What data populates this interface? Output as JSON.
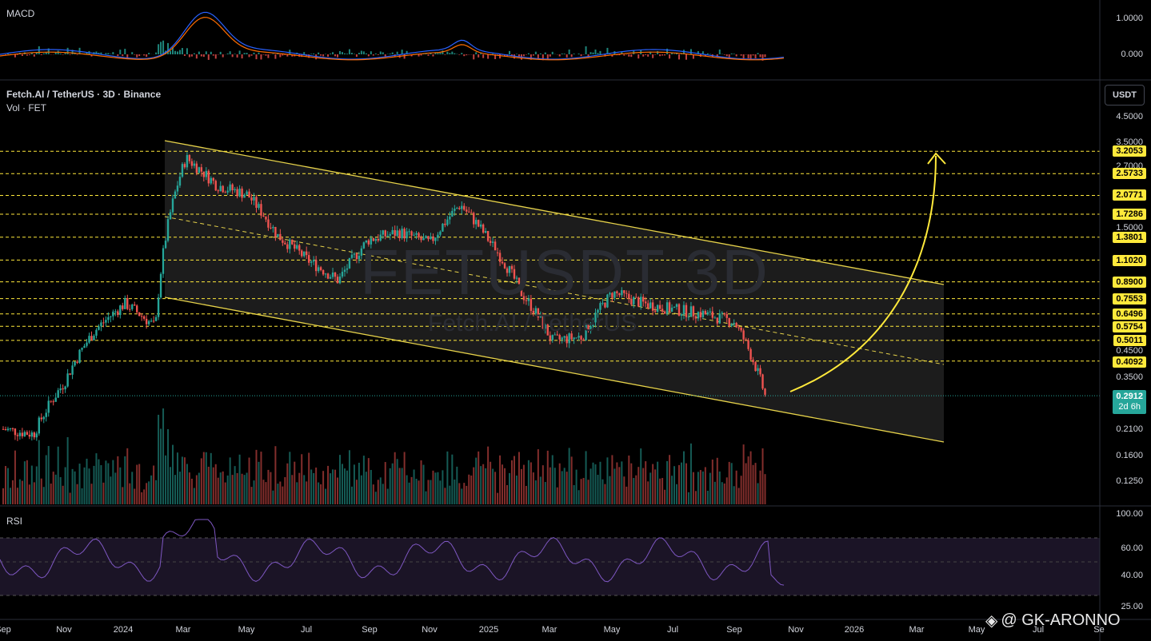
{
  "header": {
    "symbol_title": "Fetch.AI / TetherUS · 3D · Binance",
    "volume_title": "Vol · FET",
    "currency_button": "USDT",
    "watermark_symbol": "FETUSDT 3D",
    "watermark_name": "Fetch.AI / TetherUS",
    "brand": "@ GK-ARONNO"
  },
  "panes": {
    "macd": {
      "title": "MACD",
      "ticks": [
        "1.0000",
        "0.000"
      ]
    },
    "rsi": {
      "title": "RSI",
      "ticks": [
        "100.00",
        "60.00",
        "40.00",
        "25.00"
      ]
    }
  },
  "price_axis": {
    "ticks": [
      "4.5000",
      "3.5000",
      "2.7000",
      "1.5000",
      "0.4500",
      "0.3500",
      "0.2100",
      "0.1600",
      "0.1250"
    ]
  },
  "current_price": {
    "value": "0.2912",
    "countdown": "2d 6h"
  },
  "x_axis": [
    "Sep",
    "Nov",
    "2024",
    "Mar",
    "May",
    "Jul",
    "Sep",
    "Nov",
    "2025",
    "Mar",
    "May",
    "Jul",
    "Sep",
    "Nov",
    "2026",
    "Mar",
    "May",
    "Jul",
    "Se"
  ],
  "colors": {
    "up": "#26a69a",
    "down": "#ef5350",
    "level": "#ffe93b",
    "channel": "#e6d24a",
    "macd": "#2962ff",
    "signal": "#ff6d00",
    "rsi": "#7e57c2"
  },
  "chart_data": {
    "type": "candlestick",
    "title": "Fetch.AI / TetherUS · 3D · Binance",
    "price_series_approx": [
      {
        "t": "Sep 2023",
        "p": 0.21
      },
      {
        "t": "Oct 2023",
        "p": 0.2
      },
      {
        "t": "Nov 2023",
        "p": 0.33
      },
      {
        "t": "Dec 2023",
        "p": 0.55
      },
      {
        "t": "Jan 2024",
        "p": 0.72
      },
      {
        "t": "Feb 2024",
        "p": 0.57
      },
      {
        "t": "Mar 2024",
        "p": 3.0
      },
      {
        "t": "Apr 2024",
        "p": 2.3
      },
      {
        "t": "May 2024",
        "p": 2.1
      },
      {
        "t": "Jun 2024",
        "p": 1.4
      },
      {
        "t": "Jul 2024",
        "p": 1.1
      },
      {
        "t": "Aug 2024",
        "p": 0.9
      },
      {
        "t": "Sep 2024",
        "p": 1.35
      },
      {
        "t": "Oct 2024",
        "p": 1.45
      },
      {
        "t": "Nov 2024",
        "p": 1.3
      },
      {
        "t": "Dec 2024",
        "p": 1.9
      },
      {
        "t": "Jan 2025",
        "p": 1.3
      },
      {
        "t": "Feb 2025",
        "p": 0.8
      },
      {
        "t": "Mar 2025",
        "p": 0.5
      },
      {
        "t": "Apr 2025",
        "p": 0.52
      },
      {
        "t": "May 2025",
        "p": 0.8
      },
      {
        "t": "Jun 2025",
        "p": 0.72
      },
      {
        "t": "Jul 2025",
        "p": 0.68
      },
      {
        "t": "Aug 2025",
        "p": 0.65
      },
      {
        "t": "Sep 2025",
        "p": 0.6
      },
      {
        "t": "Oct 2025",
        "p": 0.2912
      }
    ],
    "horizontal_levels": [
      "3.2053",
      "2.5733",
      "2.0771",
      "1.7286",
      "1.3801",
      "1.1020",
      "0.8900",
      "0.7553",
      "0.6496",
      "0.5754",
      "0.5011",
      "0.4092"
    ],
    "current_price": 0.2912,
    "annotation": "descending channel with projected breakout arrow"
  }
}
